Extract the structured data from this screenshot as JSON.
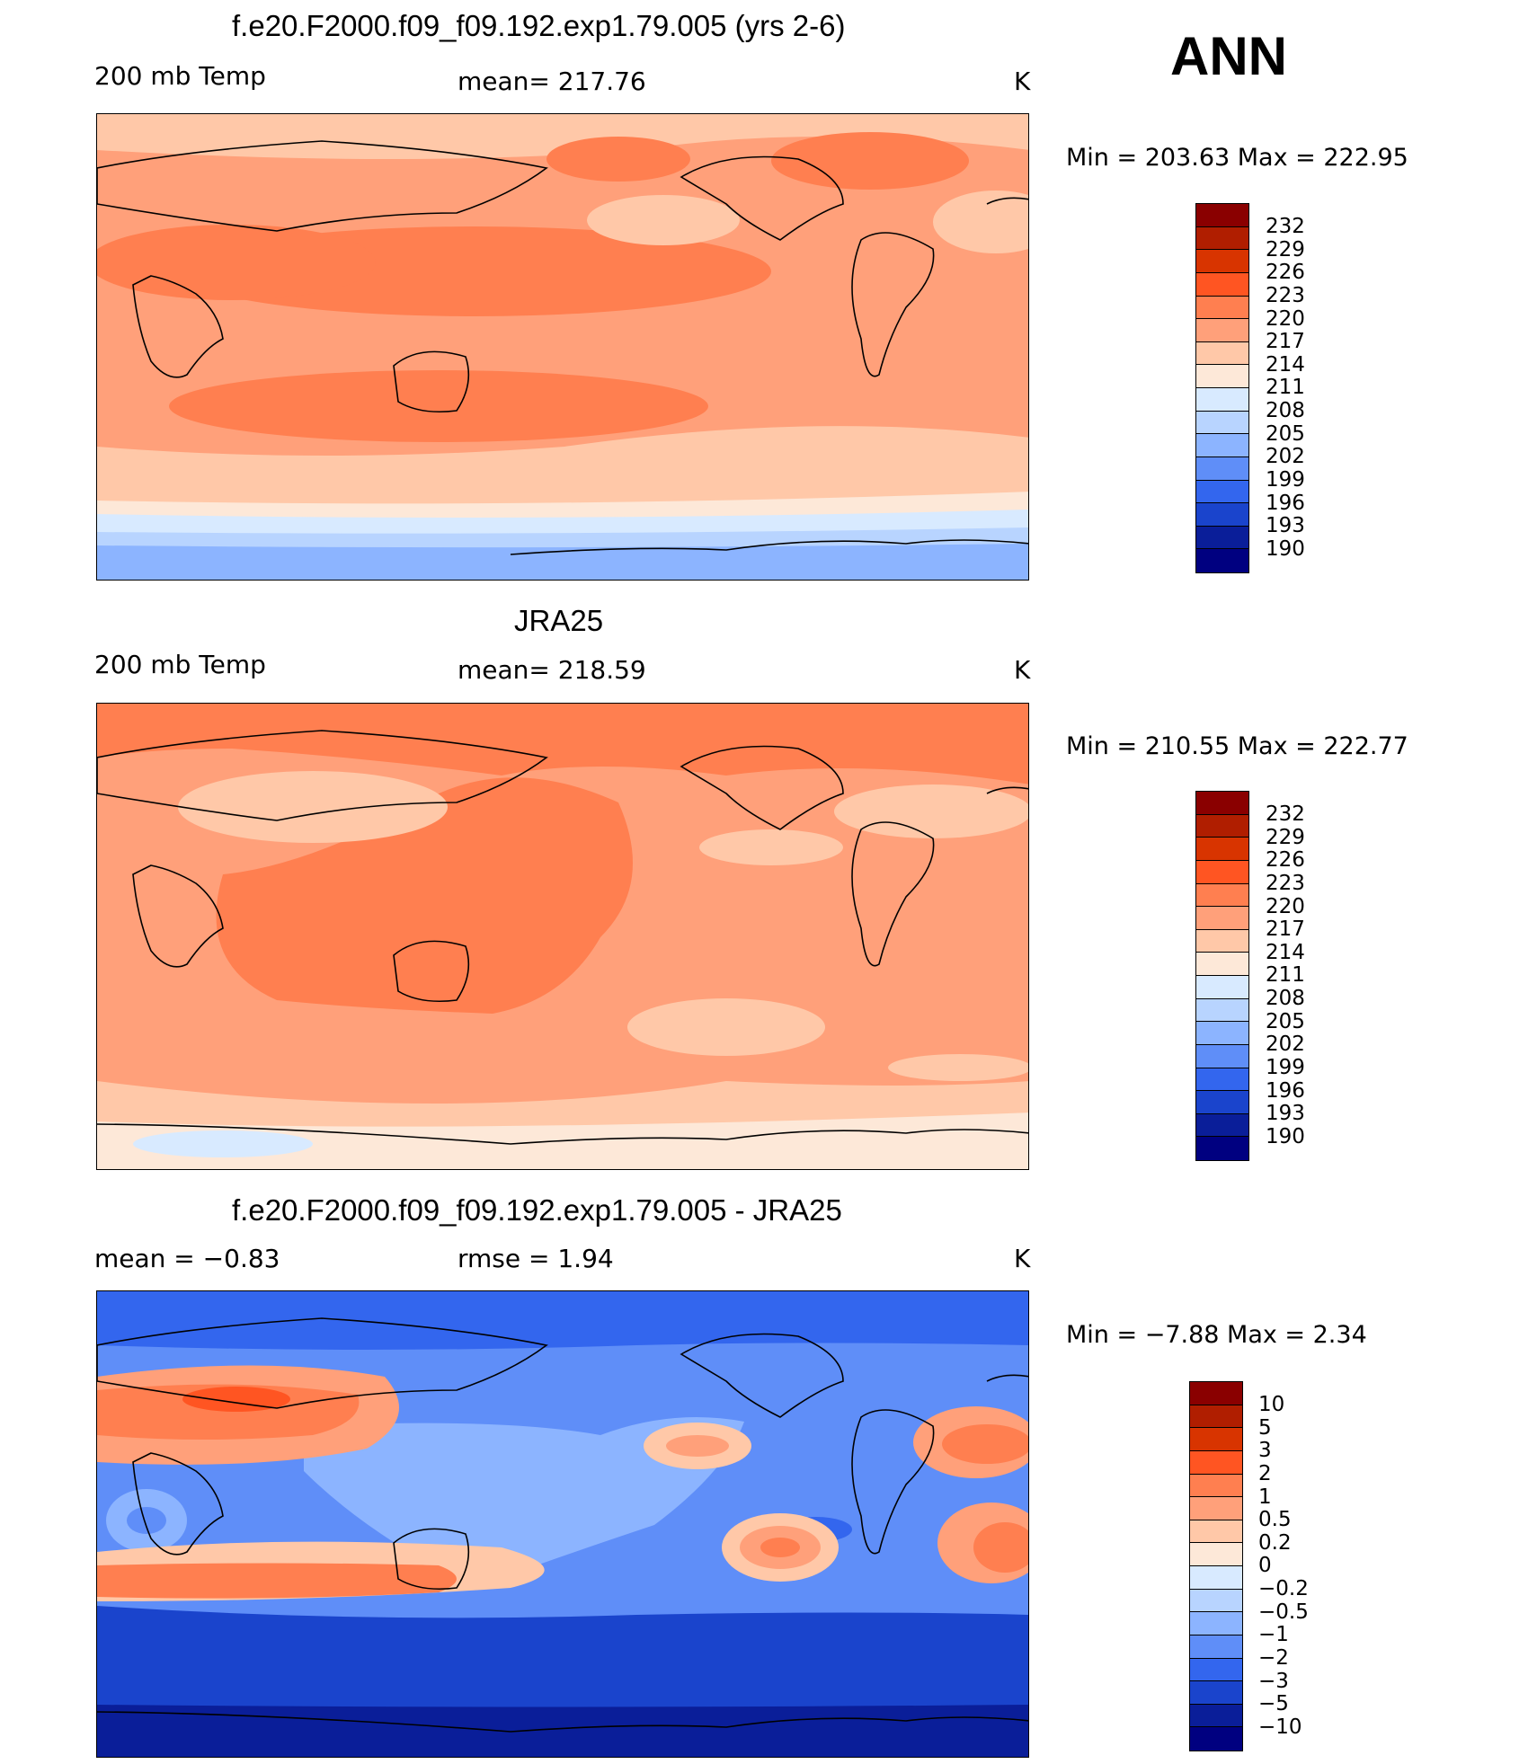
{
  "season": "ANN",
  "panels": [
    {
      "title": "f.e20.F2000.f09_f09.192.exp1.79.005 (yrs 2-6)",
      "left_label": "200 mb Temp",
      "center_label": "mean= 217.76",
      "units": "K",
      "minmax": "Min  =  203.63  Max  =  222.95",
      "colorbar": {
        "labels": [
          "232",
          "229",
          "226",
          "223",
          "220",
          "217",
          "214",
          "211",
          "208",
          "205",
          "202",
          "199",
          "196",
          "193",
          "190"
        ],
        "colors": [
          "#8a0000",
          "#b01e00",
          "#d83400",
          "#ff5522",
          "#ff7f50",
          "#ffa07a",
          "#ffc8a8",
          "#fde8d8",
          "#d8eaff",
          "#b8d4ff",
          "#8cb4ff",
          "#5f8ef8",
          "#3366ee",
          "#1a44cc",
          "#0a1e99",
          "#000080"
        ]
      }
    },
    {
      "title": "JRA25",
      "left_label": "200 mb Temp",
      "center_label": "mean= 218.59",
      "units": "K",
      "minmax": "Min  =  210.55  Max  =  222.77",
      "colorbar": {
        "labels": [
          "232",
          "229",
          "226",
          "223",
          "220",
          "217",
          "214",
          "211",
          "208",
          "205",
          "202",
          "199",
          "196",
          "193",
          "190"
        ],
        "colors": [
          "#8a0000",
          "#b01e00",
          "#d83400",
          "#ff5522",
          "#ff7f50",
          "#ffa07a",
          "#ffc8a8",
          "#fde8d8",
          "#d8eaff",
          "#b8d4ff",
          "#8cb4ff",
          "#5f8ef8",
          "#3366ee",
          "#1a44cc",
          "#0a1e99",
          "#000080"
        ]
      }
    },
    {
      "title": "f.e20.F2000.f09_f09.192.exp1.79.005 - JRA25",
      "left_label": "mean  =    −0.83",
      "center_label": "rmse  =     1.94",
      "units": "K",
      "minmax": "Min  =   −7.88  Max  =     2.34",
      "colorbar": {
        "labels": [
          "10",
          "5",
          "3",
          "2",
          "1",
          "0.5",
          "0.2",
          "0",
          "−0.2",
          "−0.5",
          "−1",
          "−2",
          "−3",
          "−5",
          "−10"
        ],
        "colors": [
          "#8a0000",
          "#b01e00",
          "#d83400",
          "#ff5522",
          "#ff7f50",
          "#ffa07a",
          "#ffc8a8",
          "#fde8d8",
          "#d8eaff",
          "#b8d4ff",
          "#8cb4ff",
          "#5f8ef8",
          "#3366ee",
          "#1a44cc",
          "#0a1e99",
          "#000080"
        ]
      }
    }
  ]
}
